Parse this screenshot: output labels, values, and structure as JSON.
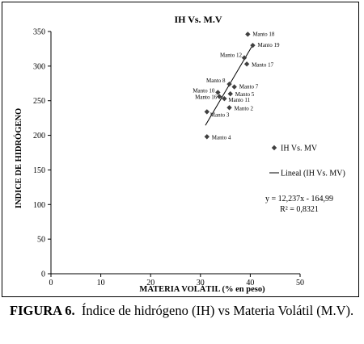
{
  "chart_data": {
    "type": "scatter",
    "title": "IH Vs. M.V",
    "xlabel": "MATERIA VOLÁTIL (% en peso)",
    "ylabel": "INDICE DE HIDRÓGENO",
    "xlim": [
      0,
      50
    ],
    "ylim": [
      0,
      350
    ],
    "xticks": [
      "0",
      "10",
      "20",
      "30",
      "40",
      "50"
    ],
    "yticks": [
      "0",
      "50",
      "100",
      "150",
      "200",
      "250",
      "300",
      "350"
    ],
    "grid": false,
    "legend_position": "right",
    "series": [
      {
        "name": "IH Vs. MV",
        "marker": "diamond",
        "color": "#404040",
        "points": [
          {
            "label": "Manto 18",
            "x": 39.5,
            "y": 346
          },
          {
            "label": "Manto 19",
            "x": 40.5,
            "y": 330
          },
          {
            "label": "Manto 12",
            "x": 38.8,
            "y": 312
          },
          {
            "label": "Manto 17",
            "x": 39.3,
            "y": 303
          },
          {
            "label": "Manto 8",
            "x": 35.8,
            "y": 274
          },
          {
            "label": "Manto  7",
            "x": 36.8,
            "y": 270
          },
          {
            "label": "Manto 10",
            "x": 33.5,
            "y": 262
          },
          {
            "label": "Manto 5",
            "x": 36.0,
            "y": 260
          },
          {
            "label": "Manto 16",
            "x": 33.8,
            "y": 256
          },
          {
            "label": "Manto 11",
            "x": 34.8,
            "y": 253
          },
          {
            "label": "Manto 2",
            "x": 35.8,
            "y": 240
          },
          {
            "label": "Manto 3",
            "x": 31.3,
            "y": 234
          },
          {
            "label": "Manto 4",
            "x": 31.3,
            "y": 198
          }
        ]
      },
      {
        "name": "Lineal (IH Vs. MV)",
        "type": "line",
        "color": "#000000",
        "x": [
          31.0,
          40.5
        ],
        "y": [
          214.4,
          330.6
        ]
      }
    ],
    "annotations": [
      "y = 12,237x - 164,99",
      "R² = 0,8321"
    ]
  },
  "caption": {
    "label": "FIGURA 6.",
    "text": "Índice de hidrógeno (IH) vs  Materia Volátil (M.V)."
  }
}
